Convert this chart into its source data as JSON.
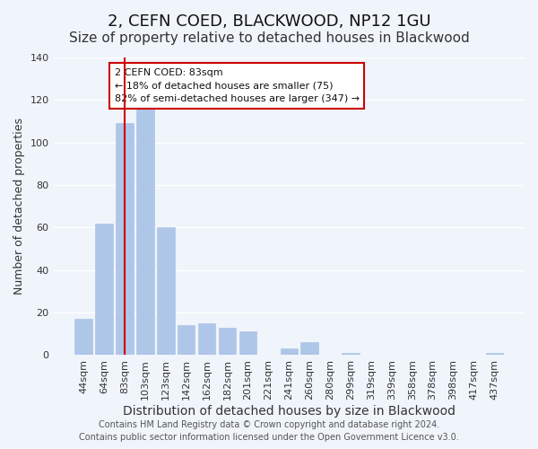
{
  "title": "2, CEFN COED, BLACKWOOD, NP12 1GU",
  "subtitle": "Size of property relative to detached houses in Blackwood",
  "xlabel": "Distribution of detached houses by size in Blackwood",
  "ylabel": "Number of detached properties",
  "bar_labels": [
    "44sqm",
    "64sqm",
    "83sqm",
    "103sqm",
    "123sqm",
    "142sqm",
    "162sqm",
    "182sqm",
    "201sqm",
    "221sqm",
    "241sqm",
    "260sqm",
    "280sqm",
    "299sqm",
    "319sqm",
    "339sqm",
    "358sqm",
    "378sqm",
    "398sqm",
    "417sqm",
    "437sqm"
  ],
  "bar_values": [
    17,
    62,
    109,
    116,
    60,
    14,
    15,
    13,
    11,
    0,
    3,
    6,
    0,
    1,
    0,
    0,
    0,
    0,
    0,
    0,
    1
  ],
  "bar_color": "#aec6e8",
  "highlight_bar_index": 2,
  "highlight_color": "#cc0000",
  "ylim": [
    0,
    140
  ],
  "yticks": [
    0,
    20,
    40,
    60,
    80,
    100,
    120,
    140
  ],
  "annotation_title": "2 CEFN COED: 83sqm",
  "annotation_line1": "← 18% of detached houses are smaller (75)",
  "annotation_line2": "82% of semi-detached houses are larger (347) →",
  "annotation_box_color": "#ffffff",
  "annotation_box_edgecolor": "#cc0000",
  "footer_line1": "Contains HM Land Registry data © Crown copyright and database right 2024.",
  "footer_line2": "Contains public sector information licensed under the Open Government Licence v3.0.",
  "background_color": "#f0f4fb",
  "grid_color": "#ffffff",
  "title_fontsize": 13,
  "subtitle_fontsize": 11,
  "xlabel_fontsize": 10,
  "ylabel_fontsize": 9,
  "tick_fontsize": 8,
  "footer_fontsize": 7
}
